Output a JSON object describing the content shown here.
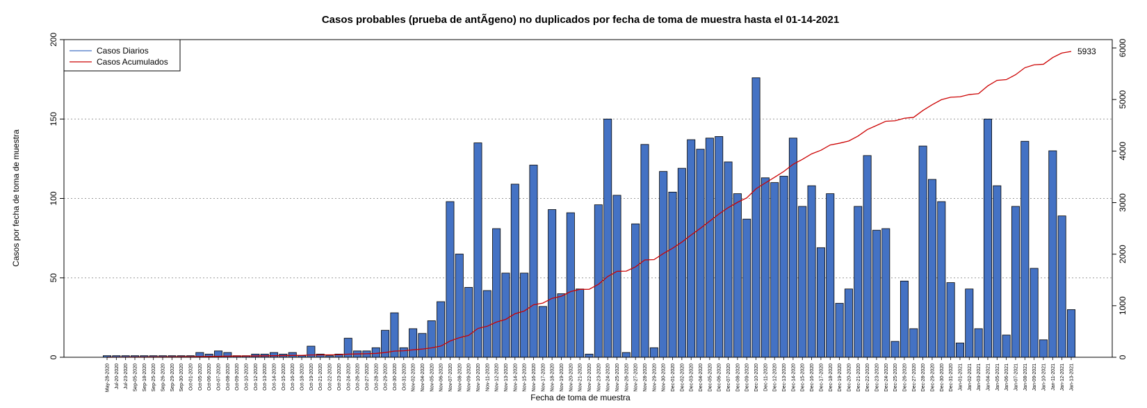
{
  "chart_data": {
    "type": "bar",
    "title": "Casos probables (prueba de antÃ­geno) no duplicados por fecha de toma de muestra hasta el 01-14-2021",
    "xlabel": "Fecha de toma de muestra",
    "ylabel": "Casos por fecha de toma de muestra",
    "ylim": [
      0,
      200
    ],
    "y2lim": [
      0,
      6000
    ],
    "yticks": [
      0,
      50,
      100,
      150,
      200
    ],
    "y2ticks": [
      0,
      1000,
      2000,
      3000,
      4000,
      5000,
      6000
    ],
    "grid": "horizontal dotted at left-axis ticks",
    "legend_position": "top-left",
    "legend": [
      {
        "label": "Casos Diarios",
        "color": "#4472c4"
      },
      {
        "label": "Casos Acumulados",
        "color": "#cc0000"
      }
    ],
    "end_label": "5933",
    "categories": [
      "May-28-2020",
      "Jul-20-2020",
      "Jul-23-2020",
      "Sep-05-2020",
      "Sep-18-2020",
      "Sep-25-2020",
      "Sep-26-2020",
      "Sep-29-2020",
      "Sep-30-2020",
      "Oct-01-2020",
      "Oct-05-2020",
      "Oct-06-2020",
      "Oct-07-2020",
      "Oct-08-2020",
      "Oct-09-2020",
      "Oct-10-2020",
      "Oct-12-2020",
      "Oct-13-2020",
      "Oct-14-2020",
      "Oct-15-2020",
      "Oct-16-2020",
      "Oct-18-2020",
      "Oct-19-2020",
      "Oct-21-2020",
      "Oct-22-2020",
      "Oct-23-2020",
      "Oct-24-2020",
      "Oct-26-2020",
      "Oct-27-2020",
      "Oct-28-2020",
      "Oct-29-2020",
      "Oct-30-2020",
      "Oct-31-2020",
      "Nov-02-2020",
      "Nov-04-2020",
      "Nov-05-2020",
      "Nov-06-2020",
      "Nov-07-2020",
      "Nov-08-2020",
      "Nov-09-2020",
      "Nov-10-2020",
      "Nov-11-2020",
      "Nov-12-2020",
      "Nov-13-2020",
      "Nov-14-2020",
      "Nov-15-2020",
      "Nov-16-2020",
      "Nov-17-2020",
      "Nov-18-2020",
      "Nov-19-2020",
      "Nov-20-2020",
      "Nov-21-2020",
      "Nov-22-2020",
      "Nov-23-2020",
      "Nov-24-2020",
      "Nov-25-2020",
      "Nov-26-2020",
      "Nov-27-2020",
      "Nov-28-2020",
      "Nov-29-2020",
      "Nov-30-2020",
      "Dec-01-2020",
      "Dec-02-2020",
      "Dec-03-2020",
      "Dec-04-2020",
      "Dec-05-2020",
      "Dec-06-2020",
      "Dec-07-2020",
      "Dec-08-2020",
      "Dec-09-2020",
      "Dec-10-2020",
      "Dec-11-2020",
      "Dec-12-2020",
      "Dec-13-2020",
      "Dec-14-2020",
      "Dec-15-2020",
      "Dec-16-2020",
      "Dec-17-2020",
      "Dec-18-2020",
      "Dec-19-2020",
      "Dec-20-2020",
      "Dec-21-2020",
      "Dec-22-2020",
      "Dec-23-2020",
      "Dec-24-2020",
      "Dec-25-2020",
      "Dec-26-2020",
      "Dec-27-2020",
      "Dec-28-2020",
      "Dec-29-2020",
      "Dec-30-2020",
      "Dec-31-2020",
      "Jan-01-2021",
      "Jan-02-2021",
      "Jan-03-2021",
      "Jan-04-2021",
      "Jan-05-2021",
      "Jan-06-2021",
      "Jan-07-2021",
      "Jan-08-2021",
      "Jan-09-2021",
      "Jan-10-2021",
      "Jan-11-2021",
      "Jan-12-2021",
      "Jan-13-2021"
    ],
    "values": [
      1,
      1,
      1,
      1,
      1,
      1,
      1,
      1,
      1,
      1,
      3,
      2,
      4,
      3,
      1,
      1,
      2,
      2,
      3,
      2,
      3,
      1,
      7,
      2,
      1,
      2,
      12,
      4,
      4,
      6,
      17,
      28,
      6,
      18,
      15,
      23,
      35,
      98,
      65,
      44,
      135,
      42,
      81,
      53,
      109,
      53,
      121,
      32,
      93,
      40,
      91,
      43,
      2,
      96,
      150,
      102,
      3,
      84,
      134,
      6,
      117,
      104,
      119,
      137,
      131,
      138,
      139,
      123,
      103,
      87,
      176,
      113,
      110,
      114,
      138,
      95,
      108,
      69,
      103,
      34,
      43,
      95,
      127,
      80,
      81,
      10,
      48,
      18,
      133,
      112,
      98,
      47,
      9,
      43,
      18,
      150,
      108,
      14,
      95,
      136,
      56,
      11,
      130,
      89,
      30
    ]
  }
}
